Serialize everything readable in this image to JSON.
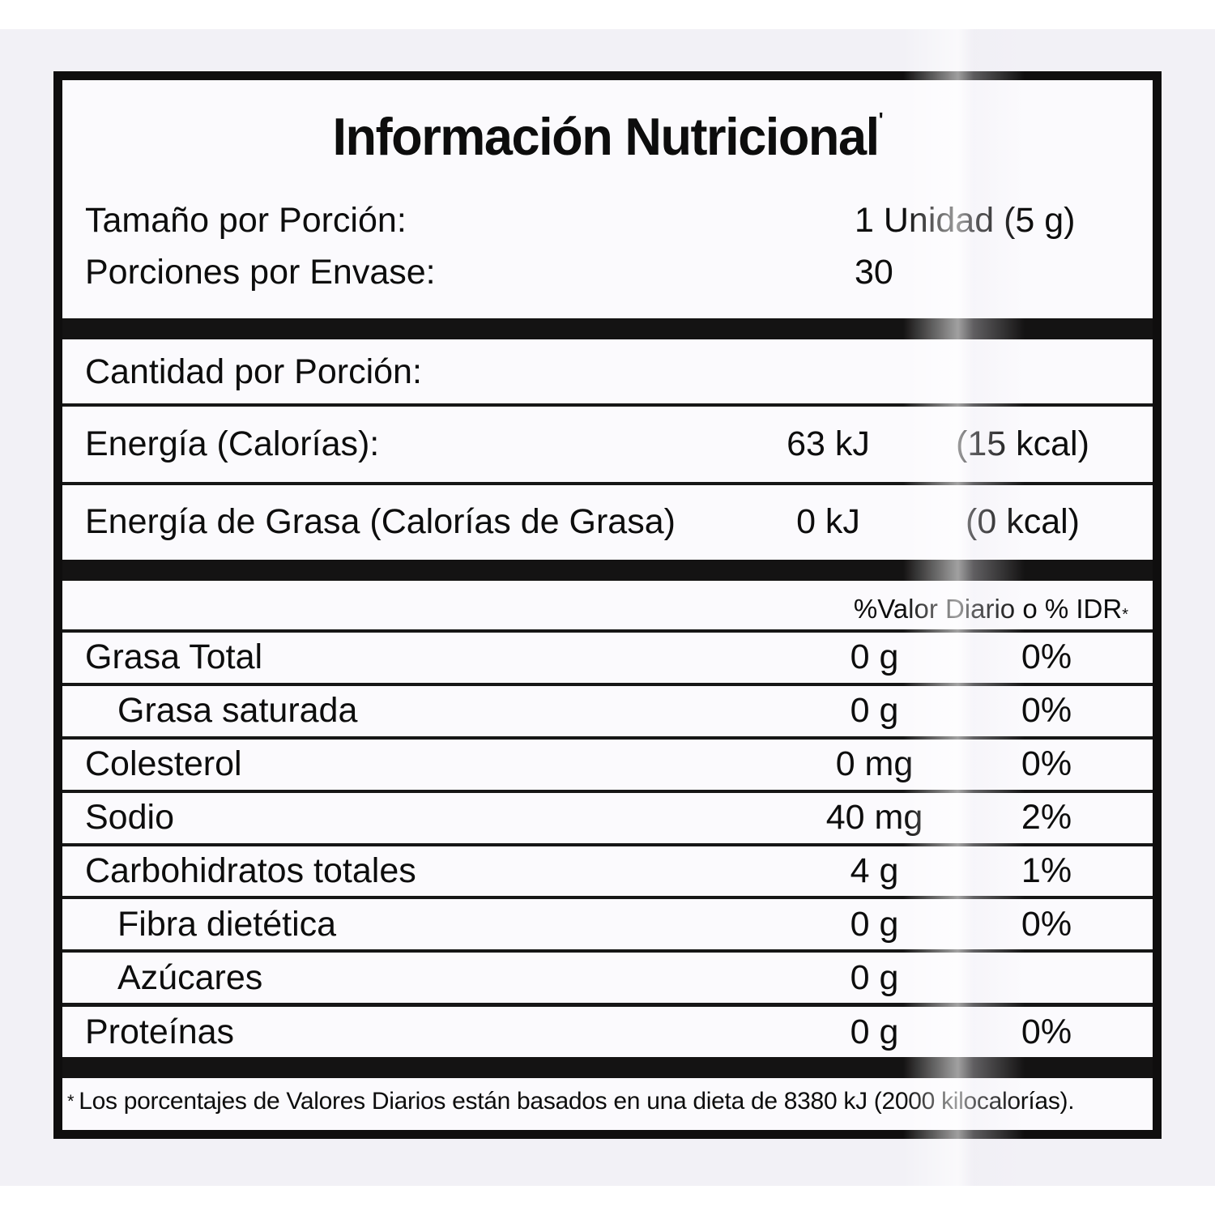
{
  "label": {
    "title": "Información Nutricional",
    "title_mark": "'",
    "serving": {
      "rows": [
        {
          "label": "Tamaño por Porción:",
          "value": "1 Unidad (5 g)"
        },
        {
          "label": "Porciones por Envase:",
          "value": "30"
        }
      ]
    },
    "amount_section": {
      "heading": "Cantidad por Porción:",
      "rows": [
        {
          "label": "Energía (Calorías):",
          "value1": "63 kJ",
          "value2": "(15 kcal)"
        },
        {
          "label": "Energía de Grasa (Calorías de Grasa)",
          "value1": "0 kJ",
          "value2": "(0 kcal)"
        }
      ]
    },
    "daily_section": {
      "header": "%Valor Diario o % IDR",
      "header_mark": "*",
      "rows": [
        {
          "label": "Grasa Total",
          "amount": "0 g",
          "dv": "0%"
        },
        {
          "label": "Grasa saturada",
          "amount": "0 g",
          "dv": "0%"
        },
        {
          "label": "Colesterol",
          "amount": "0 mg",
          "dv": "0%"
        },
        {
          "label": "Sodio",
          "amount": "40 mg",
          "dv": "2%"
        },
        {
          "label": "Carbohidratos totales",
          "amount": "4 g",
          "dv": "1%"
        },
        {
          "label": "Fibra dietética",
          "amount": "0 g",
          "dv": "0%"
        },
        {
          "label": "Azúcares",
          "amount": "0 g",
          "dv": ""
        },
        {
          "label": "Proteínas",
          "amount": "0 g",
          "dv": "0%"
        }
      ]
    },
    "footnote": {
      "mark": "*",
      "text": "Los porcentajes de Valores Diarios están basados en una dieta de 8380 kJ (2000 kilocalorías)."
    },
    "colors": {
      "ink": "#0d0d0d",
      "paper": "#fbfafd",
      "background": "#f2f1f6"
    }
  }
}
